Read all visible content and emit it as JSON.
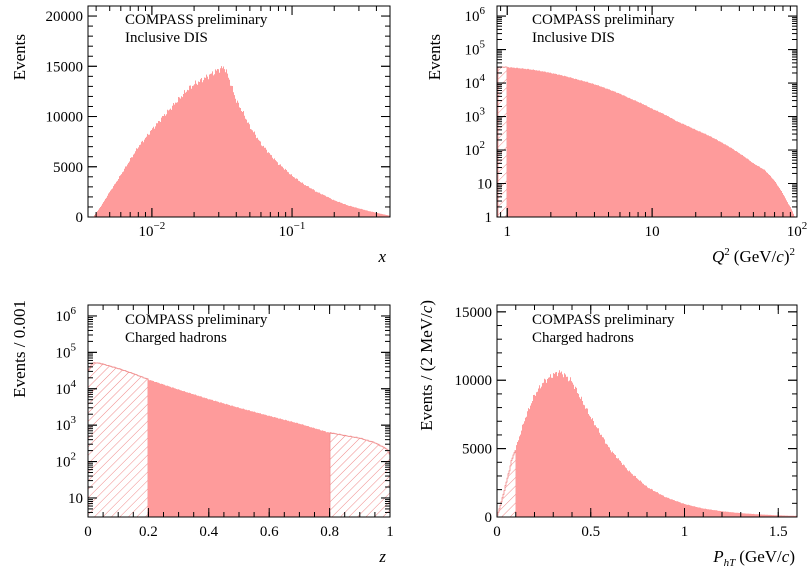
{
  "chart_data": [
    {
      "id": "x",
      "type": "bar",
      "ylabel": "Events",
      "xlabel": "x",
      "xlog": true,
      "ylog": false,
      "xlim": [
        0.0035,
        0.5
      ],
      "ylim": [
        0,
        21000
      ],
      "annotations": [
        "COMPASS preliminary",
        "Inclusive DIS"
      ],
      "xticks": [
        {
          "v": 0.01,
          "base": "10",
          "exp": "−2"
        },
        {
          "v": 0.1,
          "base": "10",
          "exp": "−1"
        }
      ],
      "yticks": [
        {
          "v": 0,
          "label": "0"
        },
        {
          "v": 5000,
          "label": "5000"
        },
        {
          "v": 10000,
          "label": "10000"
        },
        {
          "v": 15000,
          "label": "15000"
        },
        {
          "v": 20000,
          "label": "20000"
        }
      ],
      "hist": {
        "x": [
          0.0038,
          0.0042,
          0.005,
          0.006,
          0.007,
          0.008,
          0.01,
          0.012,
          0.015,
          0.018,
          0.02,
          0.025,
          0.03,
          0.033,
          0.035,
          0.04,
          0.05,
          0.06,
          0.07,
          0.08,
          0.1,
          0.12,
          0.15,
          0.2,
          0.25,
          0.3,
          0.35,
          0.4,
          0.45,
          0.5
        ],
        "y": [
          0,
          800,
          2500,
          4200,
          5700,
          7000,
          8700,
          10000,
          11500,
          12700,
          13200,
          14000,
          14700,
          14900,
          14000,
          11600,
          9000,
          7300,
          6200,
          5300,
          4100,
          3300,
          2500,
          1650,
          1150,
          850,
          600,
          420,
          260,
          130
        ]
      },
      "hatched": []
    },
    {
      "id": "Q2",
      "type": "bar",
      "ylabel": "Events",
      "xlabel": "Q",
      "xlabel_sup": "2",
      "xlabel_unit": "(GeV/",
      "xlabel_unit_it": "c",
      "xlabel_unit_end": ")",
      "xlabel_unit_sup": "2",
      "xlog": true,
      "ylog": true,
      "xlim": [
        0.85,
        100
      ],
      "ylim": [
        1,
        2000000
      ],
      "annotations": [
        "COMPASS preliminary",
        "Inclusive DIS"
      ],
      "xticks": [
        {
          "v": 1,
          "label": "1"
        },
        {
          "v": 10,
          "label": "10"
        },
        {
          "v": 100,
          "label": "10",
          "exp": "2"
        }
      ],
      "yticks": [
        {
          "v": 1,
          "label": "1"
        },
        {
          "v": 10,
          "label": "10"
        },
        {
          "v": 100,
          "label": "10",
          "exp": "2"
        },
        {
          "v": 1000,
          "label": "10",
          "exp": "3"
        },
        {
          "v": 10000,
          "label": "10",
          "exp": "4"
        },
        {
          "v": 100000,
          "label": "10",
          "exp": "5"
        },
        {
          "v": 1000000,
          "label": "10",
          "exp": "6"
        }
      ],
      "hist": {
        "x": [
          0.86,
          1,
          1.5,
          2,
          3,
          5,
          7,
          10,
          15,
          20,
          30,
          40,
          50,
          60,
          70,
          80,
          85,
          90,
          95,
          97
        ],
        "y": [
          30000,
          30000,
          25000,
          20000,
          13000,
          6500,
          3500,
          1700,
          700,
          400,
          170,
          80,
          40,
          25,
          12,
          5,
          3,
          2,
          1.2,
          1
        ]
      },
      "hatched": [
        [
          0.86,
          1.0
        ]
      ]
    },
    {
      "id": "z",
      "type": "bar",
      "ylabel": "Events / 0.001",
      "xlabel": "z",
      "xlog": false,
      "ylog": true,
      "xlim": [
        0,
        1
      ],
      "ylim": [
        3,
        2000000
      ],
      "annotations": [
        "COMPASS preliminary",
        "Charged hadrons"
      ],
      "xticks": [
        {
          "v": 0,
          "label": "0"
        },
        {
          "v": 0.2,
          "label": "0.2"
        },
        {
          "v": 0.4,
          "label": "0.4"
        },
        {
          "v": 0.6,
          "label": "0.6"
        },
        {
          "v": 0.8,
          "label": "0.8"
        },
        {
          "v": 1,
          "label": "1"
        }
      ],
      "yticks": [
        {
          "v": 10,
          "label": "10"
        },
        {
          "v": 100,
          "label": "10",
          "exp": "2"
        },
        {
          "v": 1000,
          "label": "10",
          "exp": "3"
        },
        {
          "v": 10000,
          "label": "10",
          "exp": "4"
        },
        {
          "v": 100000,
          "label": "10",
          "exp": "5"
        },
        {
          "v": 1000000,
          "label": "10",
          "exp": "6"
        }
      ],
      "hist": {
        "x": [
          0,
          0.01,
          0.02,
          0.04,
          0.06,
          0.1,
          0.15,
          0.2,
          0.3,
          0.4,
          0.5,
          0.6,
          0.7,
          0.8,
          0.85,
          0.9,
          0.95,
          0.97,
          0.99,
          1.0
        ],
        "y": [
          28000,
          45000,
          52000,
          50000,
          45000,
          36000,
          26000,
          18000,
          9500,
          5200,
          3000,
          1800,
          1100,
          620,
          520,
          440,
          330,
          270,
          220,
          150
        ]
      },
      "hatched": [
        [
          0,
          0.2
        ],
        [
          0.8,
          1.0
        ]
      ]
    },
    {
      "id": "PhT",
      "type": "bar",
      "ylabel": "Events / (2 MeV/",
      "ylabel_it": "c",
      "ylabel_end": ")",
      "xlabel": "P",
      "xlabel_sub": "hT",
      "xlabel_unit": "(GeV/",
      "xlabel_unit_it": "c",
      "xlabel_unit_end": ")",
      "xlog": false,
      "ylog": false,
      "xlim": [
        0,
        1.6
      ],
      "ylim": [
        0,
        15500
      ],
      "annotations": [
        "COMPASS preliminary",
        "Charged hadrons"
      ],
      "xticks": [
        {
          "v": 0,
          "label": "0"
        },
        {
          "v": 0.5,
          "label": "0.5"
        },
        {
          "v": 1,
          "label": "1"
        },
        {
          "v": 1.5,
          "label": "1.5"
        }
      ],
      "yticks": [
        {
          "v": 0,
          "label": "0"
        },
        {
          "v": 5000,
          "label": "5000"
        },
        {
          "v": 10000,
          "label": "10000"
        },
        {
          "v": 15000,
          "label": "15000"
        }
      ],
      "hist": {
        "x": [
          0,
          0.02,
          0.05,
          0.08,
          0.1,
          0.15,
          0.2,
          0.25,
          0.3,
          0.33,
          0.35,
          0.4,
          0.45,
          0.5,
          0.6,
          0.7,
          0.8,
          0.9,
          1.0,
          1.1,
          1.2,
          1.3,
          1.4,
          1.5,
          1.6
        ],
        "y": [
          0,
          900,
          2500,
          4200,
          5000,
          7200,
          8900,
          9900,
          10400,
          10600,
          10500,
          9900,
          8600,
          7300,
          5000,
          3400,
          2200,
          1450,
          950,
          620,
          420,
          280,
          190,
          120,
          80
        ]
      },
      "hatched": [
        [
          0,
          0.1
        ]
      ]
    }
  ],
  "colors": {
    "fill": "#fe9b9b",
    "hatch": "#f08a8a",
    "axis": "#000000"
  }
}
